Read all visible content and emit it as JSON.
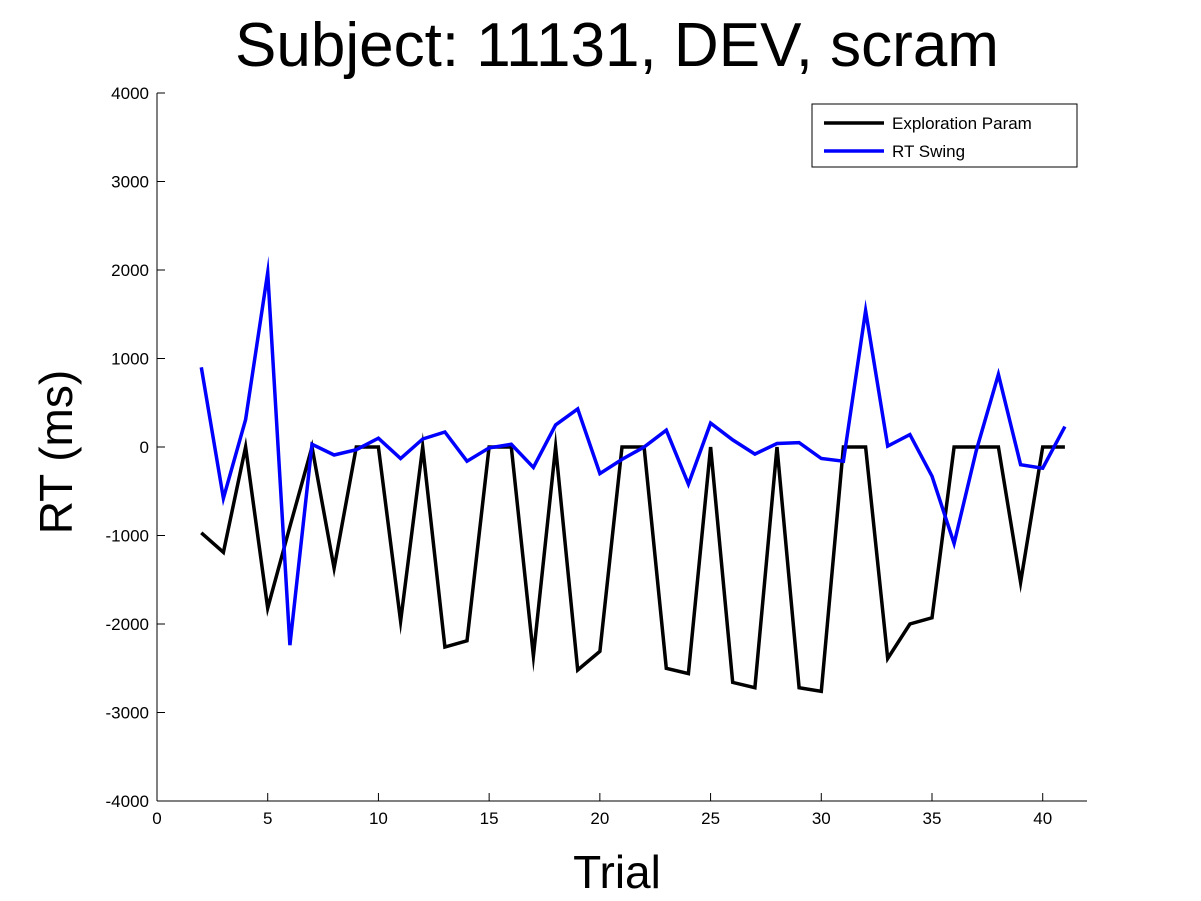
{
  "chart_data": {
    "type": "line",
    "title": "Subject: 11131, DEV, scram",
    "xlabel": "Trial",
    "ylabel": "RT (ms)",
    "xlim": [
      0,
      42
    ],
    "ylim": [
      -4000,
      4000
    ],
    "xticks": [
      0,
      5,
      10,
      15,
      20,
      25,
      30,
      35,
      40
    ],
    "yticks": [
      -4000,
      -3000,
      -2000,
      -1000,
      0,
      1000,
      2000,
      3000,
      4000
    ],
    "grid": false,
    "legend_position": "top-right",
    "x": [
      2,
      3,
      4,
      5,
      6,
      7,
      8,
      9,
      10,
      11,
      12,
      13,
      14,
      15,
      16,
      17,
      18,
      19,
      20,
      21,
      22,
      23,
      24,
      25,
      26,
      27,
      28,
      29,
      30,
      31,
      32,
      33,
      34,
      35,
      36,
      37,
      38,
      39,
      40,
      41
    ],
    "series": [
      {
        "name": "Exploration Param",
        "color": "#000000",
        "values": [
          -970,
          -1190,
          0,
          -1820,
          -900,
          0,
          -1370,
          0,
          0,
          -1970,
          0,
          -2260,
          -2190,
          0,
          0,
          -2360,
          0,
          -2520,
          -2310,
          0,
          0,
          -2500,
          -2560,
          0,
          -2660,
          -2720,
          0,
          -2720,
          -2760,
          0,
          0,
          -2390,
          -2000,
          -1930,
          0,
          0,
          0,
          -1530,
          0,
          0
        ]
      },
      {
        "name": "RT Swing",
        "color": "#0000ff",
        "values": [
          900,
          -580,
          310,
          1970,
          -2240,
          30,
          -90,
          -30,
          100,
          -130,
          90,
          170,
          -160,
          -10,
          30,
          -230,
          250,
          430,
          -300,
          -140,
          0,
          190,
          -420,
          270,
          80,
          -80,
          40,
          50,
          -130,
          -160,
          1540,
          10,
          140,
          -330,
          -1090,
          -40,
          820,
          -200,
          -240,
          230
        ]
      }
    ]
  }
}
